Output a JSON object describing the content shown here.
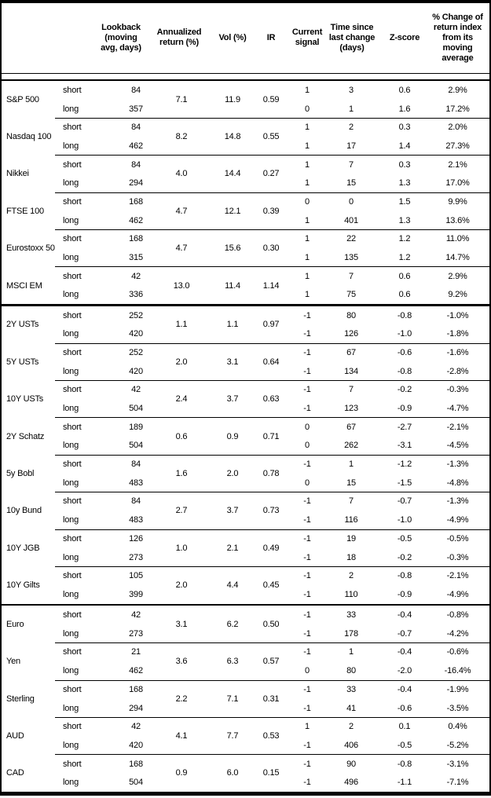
{
  "colors": {
    "background": "#ffffff",
    "text": "#000000",
    "border": "#000000"
  },
  "table": {
    "headers": {
      "lookback": "Lookback (moving avg, days)",
      "annualized_return": "Annualized return (%)",
      "vol": "Vol (%)",
      "ir": "IR",
      "current_signal": "Current signal",
      "time_since": "Time since last change (days)",
      "z_score": "Z-score",
      "pct_change": "% Change of return index from its moving average"
    },
    "groups": [
      {
        "assets": [
          {
            "name": "S&P 500",
            "annualized_return": "7.1",
            "vol": "11.9",
            "ir": "0.59",
            "rows": [
              {
                "leg": "short",
                "lookback": "84",
                "signal": "1",
                "time_since": "3",
                "z_score": "0.6",
                "pct_change": "2.9%"
              },
              {
                "leg": "long",
                "lookback": "357",
                "signal": "0",
                "time_since": "1",
                "z_score": "1.6",
                "pct_change": "17.2%"
              }
            ]
          },
          {
            "name": "Nasdaq 100",
            "annualized_return": "8.2",
            "vol": "14.8",
            "ir": "0.55",
            "rows": [
              {
                "leg": "short",
                "lookback": "84",
                "signal": "1",
                "time_since": "2",
                "z_score": "0.3",
                "pct_change": "2.0%"
              },
              {
                "leg": "long",
                "lookback": "462",
                "signal": "1",
                "time_since": "17",
                "z_score": "1.4",
                "pct_change": "27.3%"
              }
            ]
          },
          {
            "name": "Nikkei",
            "annualized_return": "4.0",
            "vol": "14.4",
            "ir": "0.27",
            "rows": [
              {
                "leg": "short",
                "lookback": "84",
                "signal": "1",
                "time_since": "7",
                "z_score": "0.3",
                "pct_change": "2.1%"
              },
              {
                "leg": "long",
                "lookback": "294",
                "signal": "1",
                "time_since": "15",
                "z_score": "1.3",
                "pct_change": "17.0%"
              }
            ]
          },
          {
            "name": "FTSE 100",
            "annualized_return": "4.7",
            "vol": "12.1",
            "ir": "0.39",
            "rows": [
              {
                "leg": "short",
                "lookback": "168",
                "signal": "0",
                "time_since": "0",
                "z_score": "1.5",
                "pct_change": "9.9%"
              },
              {
                "leg": "long",
                "lookback": "462",
                "signal": "1",
                "time_since": "401",
                "z_score": "1.3",
                "pct_change": "13.6%"
              }
            ]
          },
          {
            "name": "Eurostoxx 50",
            "annualized_return": "4.7",
            "vol": "15.6",
            "ir": "0.30",
            "rows": [
              {
                "leg": "short",
                "lookback": "168",
                "signal": "1",
                "time_since": "22",
                "z_score": "1.2",
                "pct_change": "11.0%"
              },
              {
                "leg": "long",
                "lookback": "315",
                "signal": "1",
                "time_since": "135",
                "z_score": "1.2",
                "pct_change": "14.7%"
              }
            ]
          },
          {
            "name": "MSCI EM",
            "annualized_return": "13.0",
            "vol": "11.4",
            "ir": "1.14",
            "rows": [
              {
                "leg": "short",
                "lookback": "42",
                "signal": "1",
                "time_since": "7",
                "z_score": "0.6",
                "pct_change": "2.9%"
              },
              {
                "leg": "long",
                "lookback": "336",
                "signal": "1",
                "time_since": "75",
                "z_score": "0.6",
                "pct_change": "9.2%"
              }
            ]
          }
        ]
      },
      {
        "assets": [
          {
            "name": "2Y USTs",
            "annualized_return": "1.1",
            "vol": "1.1",
            "ir": "0.97",
            "rows": [
              {
                "leg": "short",
                "lookback": "252",
                "signal": "-1",
                "time_since": "80",
                "z_score": "-0.8",
                "pct_change": "-1.0%"
              },
              {
                "leg": "long",
                "lookback": "420",
                "signal": "-1",
                "time_since": "126",
                "z_score": "-1.0",
                "pct_change": "-1.8%"
              }
            ]
          },
          {
            "name": "5Y USTs",
            "annualized_return": "2.0",
            "vol": "3.1",
            "ir": "0.64",
            "rows": [
              {
                "leg": "short",
                "lookback": "252",
                "signal": "-1",
                "time_since": "67",
                "z_score": "-0.6",
                "pct_change": "-1.6%"
              },
              {
                "leg": "long",
                "lookback": "420",
                "signal": "-1",
                "time_since": "134",
                "z_score": "-0.8",
                "pct_change": "-2.8%"
              }
            ]
          },
          {
            "name": "10Y USTs",
            "annualized_return": "2.4",
            "vol": "3.7",
            "ir": "0.63",
            "rows": [
              {
                "leg": "short",
                "lookback": "42",
                "signal": "-1",
                "time_since": "7",
                "z_score": "-0.2",
                "pct_change": "-0.3%"
              },
              {
                "leg": "long",
                "lookback": "504",
                "signal": "-1",
                "time_since": "123",
                "z_score": "-0.9",
                "pct_change": "-4.7%"
              }
            ]
          },
          {
            "name": "2Y Schatz",
            "annualized_return": "0.6",
            "vol": "0.9",
            "ir": "0.71",
            "rows": [
              {
                "leg": "short",
                "lookback": "189",
                "signal": "0",
                "time_since": "67",
                "z_score": "-2.7",
                "pct_change": "-2.1%"
              },
              {
                "leg": "long",
                "lookback": "504",
                "signal": "0",
                "time_since": "262",
                "z_score": "-3.1",
                "pct_change": "-4.5%"
              }
            ]
          },
          {
            "name": "5y Bobl",
            "annualized_return": "1.6",
            "vol": "2.0",
            "ir": "0.78",
            "rows": [
              {
                "leg": "short",
                "lookback": "84",
                "signal": "-1",
                "time_since": "1",
                "z_score": "-1.2",
                "pct_change": "-1.3%"
              },
              {
                "leg": "long",
                "lookback": "483",
                "signal": "0",
                "time_since": "15",
                "z_score": "-1.5",
                "pct_change": "-4.8%"
              }
            ]
          },
          {
            "name": "10y Bund",
            "annualized_return": "2.7",
            "vol": "3.7",
            "ir": "0.73",
            "rows": [
              {
                "leg": "short",
                "lookback": "84",
                "signal": "-1",
                "time_since": "7",
                "z_score": "-0.7",
                "pct_change": "-1.3%"
              },
              {
                "leg": "long",
                "lookback": "483",
                "signal": "-1",
                "time_since": "116",
                "z_score": "-1.0",
                "pct_change": "-4.9%"
              }
            ]
          },
          {
            "name": "10Y JGB",
            "annualized_return": "1.0",
            "vol": "2.1",
            "ir": "0.49",
            "rows": [
              {
                "leg": "short",
                "lookback": "126",
                "signal": "-1",
                "time_since": "19",
                "z_score": "-0.5",
                "pct_change": "-0.5%"
              },
              {
                "leg": "long",
                "lookback": "273",
                "signal": "-1",
                "time_since": "18",
                "z_score": "-0.2",
                "pct_change": "-0.3%"
              }
            ]
          },
          {
            "name": "10Y Gilts",
            "annualized_return": "2.0",
            "vol": "4.4",
            "ir": "0.45",
            "rows": [
              {
                "leg": "short",
                "lookback": "105",
                "signal": "-1",
                "time_since": "2",
                "z_score": "-0.8",
                "pct_change": "-2.1%"
              },
              {
                "leg": "long",
                "lookback": "399",
                "signal": "-1",
                "time_since": "110",
                "z_score": "-0.9",
                "pct_change": "-4.9%"
              }
            ]
          }
        ]
      },
      {
        "assets": [
          {
            "name": "Euro",
            "annualized_return": "3.1",
            "vol": "6.2",
            "ir": "0.50",
            "rows": [
              {
                "leg": "short",
                "lookback": "42",
                "signal": "-1",
                "time_since": "33",
                "z_score": "-0.4",
                "pct_change": "-0.8%"
              },
              {
                "leg": "long",
                "lookback": "273",
                "signal": "-1",
                "time_since": "178",
                "z_score": "-0.7",
                "pct_change": "-4.2%"
              }
            ]
          },
          {
            "name": "Yen",
            "annualized_return": "3.6",
            "vol": "6.3",
            "ir": "0.57",
            "rows": [
              {
                "leg": "short",
                "lookback": "21",
                "signal": "-1",
                "time_since": "1",
                "z_score": "-0.4",
                "pct_change": "-0.6%"
              },
              {
                "leg": "long",
                "lookback": "462",
                "signal": "0",
                "time_since": "80",
                "z_score": "-2.0",
                "pct_change": "-16.4%"
              }
            ]
          },
          {
            "name": "Sterling",
            "annualized_return": "2.2",
            "vol": "7.1",
            "ir": "0.31",
            "rows": [
              {
                "leg": "short",
                "lookback": "168",
                "signal": "-1",
                "time_since": "33",
                "z_score": "-0.4",
                "pct_change": "-1.9%"
              },
              {
                "leg": "long",
                "lookback": "294",
                "signal": "-1",
                "time_since": "41",
                "z_score": "-0.6",
                "pct_change": "-3.5%"
              }
            ]
          },
          {
            "name": "AUD",
            "annualized_return": "4.1",
            "vol": "7.7",
            "ir": "0.53",
            "rows": [
              {
                "leg": "short",
                "lookback": "42",
                "signal": "1",
                "time_since": "2",
                "z_score": "0.1",
                "pct_change": "0.4%"
              },
              {
                "leg": "long",
                "lookback": "420",
                "signal": "-1",
                "time_since": "406",
                "z_score": "-0.5",
                "pct_change": "-5.2%"
              }
            ]
          },
          {
            "name": "CAD",
            "annualized_return": "0.9",
            "vol": "6.0",
            "ir": "0.15",
            "rows": [
              {
                "leg": "short",
                "lookback": "168",
                "signal": "-1",
                "time_since": "90",
                "z_score": "-0.8",
                "pct_change": "-3.1%"
              },
              {
                "leg": "long",
                "lookback": "504",
                "signal": "-1",
                "time_since": "496",
                "z_score": "-1.1",
                "pct_change": "-7.1%"
              }
            ]
          }
        ]
      }
    ]
  }
}
